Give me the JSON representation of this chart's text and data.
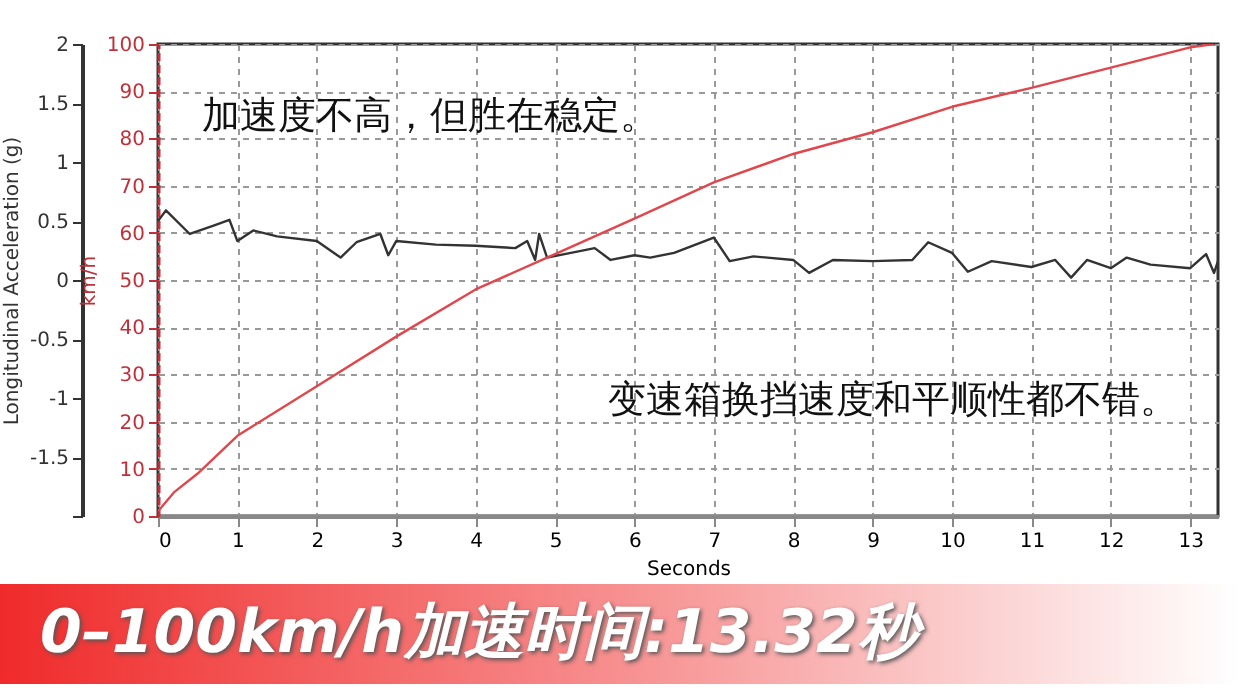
{
  "chart_data": {
    "type": "line",
    "title": "0–100km/h加速时间:13.32秒",
    "xlabel": "Seconds",
    "ylabel": "Longitudinal Acceleration (g)",
    "y2label": "km/h",
    "xlim": [
      0,
      13.35
    ],
    "xticks": [
      0,
      1,
      2,
      3,
      4,
      5,
      6,
      7,
      8,
      9,
      10,
      11,
      12,
      13
    ],
    "ylim": [
      -2,
      2
    ],
    "yticks": [
      {
        "value": -2,
        "label": null
      },
      -1.5,
      -1,
      -0.5,
      0,
      0.5,
      1,
      1.5,
      2
    ],
    "y2lim": [
      0,
      100
    ],
    "y2ticks": [
      0,
      10,
      20,
      30,
      40,
      50,
      60,
      70,
      80,
      90,
      100
    ],
    "grid": true,
    "annotations": [
      "加速度不高，但胜在稳定。",
      "变速箱换挡速度和平顺性都不错。"
    ],
    "series": [
      {
        "color": "#333333",
        "axis": "y",
        "x": [
          0,
          0.1,
          0.4,
          0.7,
          0.9,
          1.0,
          1.2,
          1.5,
          2,
          2.3,
          2.5,
          2.8,
          2.9,
          3,
          3.5,
          4,
          4.5,
          4.65,
          4.75,
          4.8,
          4.9,
          5.2,
          5.5,
          5.7,
          6,
          6.2,
          6.5,
          7,
          7.2,
          7.5,
          8,
          8.2,
          8.5,
          9,
          9.5,
          9.7,
          10,
          10.2,
          10.5,
          11,
          11.3,
          11.5,
          11.7,
          12,
          12.2,
          12.5,
          13,
          13.2,
          13.3,
          13.35
        ],
        "values": [
          0.5,
          0.59,
          0.39,
          0.46,
          0.51,
          0.33,
          0.42,
          0.37,
          0.33,
          0.19,
          0.32,
          0.39,
          0.21,
          0.33,
          0.3,
          0.29,
          0.27,
          0.33,
          0.17,
          0.39,
          0.19,
          0.23,
          0.27,
          0.17,
          0.21,
          0.19,
          0.23,
          0.36,
          0.16,
          0.2,
          0.17,
          0.06,
          0.17,
          0.16,
          0.17,
          0.32,
          0.23,
          0.07,
          0.16,
          0.11,
          0.17,
          0.02,
          0.17,
          0.1,
          0.19,
          0.13,
          0.1,
          0.22,
          0.06,
          0.16
        ]
      },
      {
        "color": "#e0474c",
        "axis": "y2",
        "x": [
          0,
          0.2,
          0.5,
          1,
          2,
          3,
          4,
          5,
          6,
          7,
          8,
          9,
          10,
          11,
          12,
          13,
          13.3
        ],
        "values": [
          1,
          5,
          9,
          17,
          27.5,
          38,
          48,
          55.5,
          63,
          70.7,
          76.7,
          81.3,
          86.7,
          90.7,
          95,
          99.3,
          100
        ]
      }
    ]
  }
}
